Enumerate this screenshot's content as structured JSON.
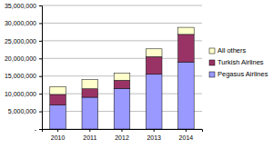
{
  "chart_data": {
    "type": "bar",
    "stacked": true,
    "grid": true,
    "legend": "right",
    "categories": [
      "2010",
      "2011",
      "2012",
      "2013",
      "2014"
    ],
    "series": [
      {
        "name": "Pegasus Airlines",
        "color": "#9999ff",
        "values": [
          6800000,
          9000000,
          11500000,
          15500000,
          19000000
        ]
      },
      {
        "name": "Turkish Airlines",
        "color": "#993366",
        "values": [
          3000000,
          2400000,
          2300000,
          5000000,
          7800000
        ]
      },
      {
        "name": "All others",
        "color": "#ffffcc",
        "values": [
          2200000,
          2600000,
          2000000,
          2200000,
          2000000
        ]
      }
    ],
    "ylim": [
      0,
      35000000
    ],
    "yticks": [
      {
        "value": 0,
        "label": "-"
      },
      {
        "value": 5000000,
        "label": "5,000,000"
      },
      {
        "value": 10000000,
        "label": "10,000,000"
      },
      {
        "value": 15000000,
        "label": "15,000,000"
      },
      {
        "value": 20000000,
        "label": "20,000,000"
      },
      {
        "value": 25000000,
        "label": "25,000,000"
      },
      {
        "value": 30000000,
        "label": "30,000,000"
      },
      {
        "value": 35000000,
        "label": "35,000,000"
      }
    ]
  }
}
